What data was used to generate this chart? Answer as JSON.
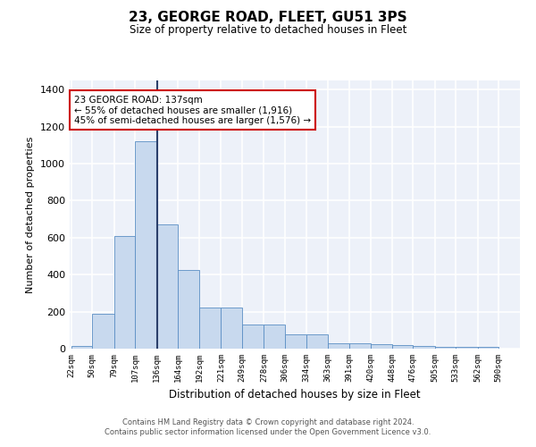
{
  "title": "23, GEORGE ROAD, FLEET, GU51 3PS",
  "subtitle": "Size of property relative to detached houses in Fleet",
  "xlabel": "Distribution of detached houses by size in Fleet",
  "ylabel": "Number of detached properties",
  "footnote1": "Contains HM Land Registry data © Crown copyright and database right 2024.",
  "footnote2": "Contains public sector information licensed under the Open Government Licence v3.0.",
  "bin_edges": [
    22,
    50,
    79,
    107,
    136,
    164,
    192,
    221,
    249,
    278,
    306,
    334,
    363,
    391,
    420,
    448,
    476,
    505,
    533,
    562,
    590
  ],
  "bar_heights": [
    15,
    190,
    610,
    1120,
    670,
    425,
    220,
    220,
    130,
    130,
    75,
    75,
    30,
    30,
    25,
    20,
    15,
    10,
    10,
    10
  ],
  "bar_color": "#c8d9ee",
  "bar_edge_color": "#5b8ec4",
  "vline_x": 136,
  "vline_color": "#2b3f6b",
  "annotation_text": "23 GEORGE ROAD: 137sqm\n← 55% of detached houses are smaller (1,916)\n45% of semi-detached houses are larger (1,576) →",
  "annotation_box_color": "white",
  "annotation_box_edge_color": "#cc0000",
  "ylim": [
    0,
    1450
  ],
  "background_color": "#edf1f9",
  "grid_color": "white",
  "tick_labels": [
    "22sqm",
    "50sqm",
    "79sqm",
    "107sqm",
    "136sqm",
    "164sqm",
    "192sqm",
    "221sqm",
    "249sqm",
    "278sqm",
    "306sqm",
    "334sqm",
    "363sqm",
    "391sqm",
    "420sqm",
    "448sqm",
    "476sqm",
    "505sqm",
    "533sqm",
    "562sqm",
    "590sqm"
  ]
}
